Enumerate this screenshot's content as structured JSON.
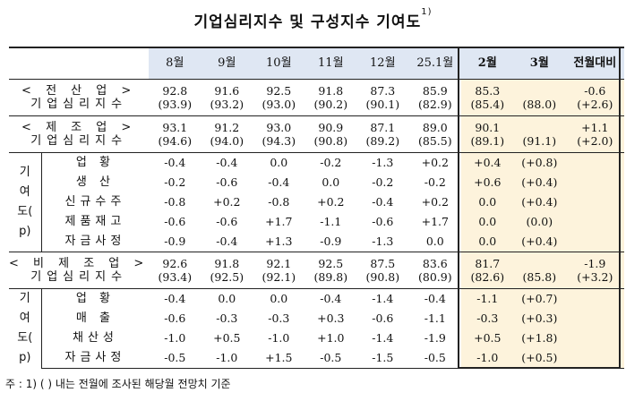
{
  "title": "기업심리지수 및 구성지수 기여도",
  "title_sup": "1)",
  "columns": [
    "8월",
    "9월",
    "10월",
    "11월",
    "12월",
    "25.1월",
    "2월",
    "3월",
    "전월대비"
  ],
  "sections": {
    "all": {
      "label1": "< 전 산 업 >",
      "label2": "기업심리지수",
      "values": [
        "92.8",
        "91.6",
        "92.5",
        "91.8",
        "87.3",
        "85.9",
        "85.3",
        "",
        "-0.6"
      ],
      "sub": [
        "(93.9)",
        "(93.2)",
        "(93.0)",
        "(90.2)",
        "(90.1)",
        "(82.9)",
        "(85.4)",
        "(88.0)",
        "(+2.6)"
      ]
    },
    "mfg": {
      "label1": "< 제 조 업 >",
      "label2": "기업심리지수",
      "values": [
        "93.1",
        "91.2",
        "93.0",
        "90.9",
        "87.1",
        "89.0",
        "90.1",
        "",
        "+1.1"
      ],
      "sub": [
        "(94.6)",
        "(94.0)",
        "(94.3)",
        "(90.8)",
        "(89.2)",
        "(85.5)",
        "(89.1)",
        "(91.1)",
        "(+2.0)"
      ],
      "group_label": [
        "기",
        "여",
        "도(",
        "p)"
      ],
      "rows": [
        {
          "label": "업 황",
          "values": [
            "-0.4",
            "-0.4",
            "0.0",
            "-0.2",
            "-1.3",
            "+0.2",
            "+0.4",
            "(+0.8)",
            ""
          ]
        },
        {
          "label": "생 산",
          "values": [
            "-0.2",
            "-0.6",
            "-0.4",
            "0.0",
            "-0.2",
            "-0.2",
            "+0.6",
            "(+0.4)",
            ""
          ]
        },
        {
          "label": "신규수주",
          "values": [
            "-0.8",
            "+0.2",
            "-0.8",
            "+0.2",
            "-0.4",
            "+0.2",
            "0.0",
            "(+0.4)",
            ""
          ]
        },
        {
          "label": "제품재고",
          "values": [
            "-0.6",
            "-0.6",
            "+1.7",
            "-1.1",
            "-0.6",
            "+1.7",
            "0.0",
            "(0.0)",
            ""
          ]
        },
        {
          "label": "자금사정",
          "values": [
            "-0.9",
            "-0.4",
            "+1.3",
            "-0.9",
            "-1.3",
            "0.0",
            "0.0",
            "(+0.4)",
            ""
          ]
        }
      ]
    },
    "nonmfg": {
      "label1": "< 비 제 조 업 >",
      "label2": "기업심리지수",
      "values": [
        "92.6",
        "91.8",
        "92.1",
        "92.5",
        "87.5",
        "83.6",
        "81.7",
        "",
        "-1.9"
      ],
      "sub": [
        "(93.4)",
        "(92.5)",
        "(92.1)",
        "(89.8)",
        "(90.8)",
        "(80.9)",
        "(82.6)",
        "(85.8)",
        "(+3.2)"
      ],
      "group_label": [
        "기",
        "여",
        "도(",
        "p)"
      ],
      "rows": [
        {
          "label": "업 황",
          "values": [
            "-0.4",
            "0.0",
            "0.0",
            "-0.4",
            "-1.4",
            "-0.4",
            "-1.1",
            "(+0.7)",
            ""
          ]
        },
        {
          "label": "매 출",
          "values": [
            "-0.6",
            "-0.3",
            "-0.3",
            "+0.3",
            "-0.6",
            "-1.1",
            "-0.3",
            "(+0.3)",
            ""
          ]
        },
        {
          "label": "채산성",
          "values": [
            "-1.0",
            "+0.5",
            "-1.0",
            "+1.0",
            "-1.4",
            "-1.9",
            "+0.5",
            "(+1.8)",
            ""
          ]
        },
        {
          "label": "자금사정",
          "values": [
            "-0.5",
            "-1.0",
            "+1.5",
            "-0.5",
            "-1.5",
            "-0.5",
            "-1.0",
            "(+0.5)",
            ""
          ]
        }
      ]
    }
  },
  "note": "주 : 1) (   ) 내는 전월에 조사된 해당월 전망치 기준"
}
